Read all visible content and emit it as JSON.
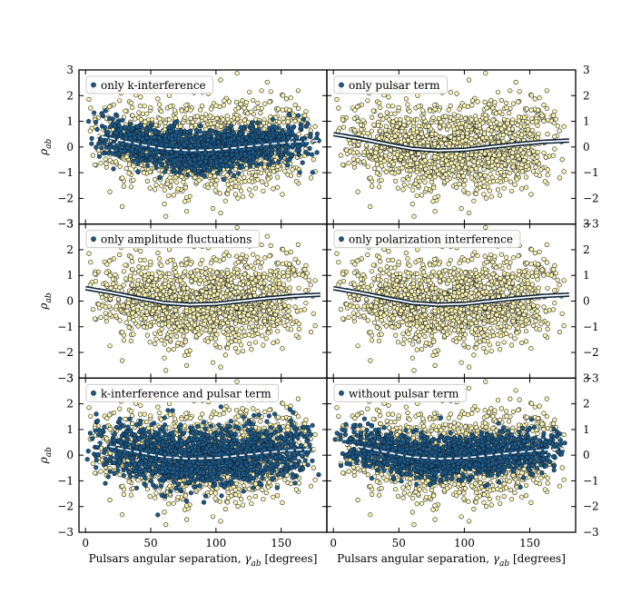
{
  "chart_data": {
    "type": "scatter",
    "layout": "3x2 grid",
    "xlabel": "Pulsars angular separation, γ_ab [degrees]",
    "xlabel_main": "Pulsars angular separation, ",
    "xlabel_symbol": "γ",
    "xlabel_sub": "ab",
    "xlabel_unit": " [degrees]",
    "ylabel": "ρ_ab",
    "ylabel_symbol": "ρ",
    "ylabel_sub": "ab",
    "xlim": [
      -5,
      185
    ],
    "ylim": [
      -3,
      3
    ],
    "xticks": [
      0,
      50,
      100,
      150
    ],
    "yticks": [
      -3,
      -2,
      -1,
      0,
      1,
      2,
      3
    ],
    "background_series": {
      "name": "",
      "color": "#fbf6b5",
      "edge": "#222222",
      "count_estimate": 1500,
      "spread_sd": 0.85
    },
    "highlight_color": "#1e5a85",
    "curve": {
      "description": "Hellings–Downs curve",
      "points": [
        [
          0,
          0.5
        ],
        [
          20,
          0.33
        ],
        [
          40,
          0.12
        ],
        [
          60,
          -0.07
        ],
        [
          80,
          -0.14
        ],
        [
          100,
          -0.11
        ],
        [
          120,
          0.0
        ],
        [
          140,
          0.11
        ],
        [
          160,
          0.2
        ],
        [
          180,
          0.25
        ]
      ]
    },
    "panels": [
      {
        "id": "k",
        "legend": "only k-interference",
        "highlight_count_estimate": 1500,
        "highlight_spread_sd": 0.38,
        "show_background": true,
        "y_ticks_side": "left",
        "x_ticks_labeled": false
      },
      {
        "id": "pulsar",
        "legend": "only pulsar term",
        "highlight_count_estimate": 0,
        "highlight_spread_sd": 0.0,
        "show_background": true,
        "y_ticks_side": "right",
        "x_ticks_labeled": false
      },
      {
        "id": "amp",
        "legend": "only amplitude fluctuations",
        "highlight_count_estimate": 0,
        "highlight_spread_sd": 0.0,
        "show_background": true,
        "y_ticks_side": "left",
        "x_ticks_labeled": false
      },
      {
        "id": "pol",
        "legend": "only polarization interference",
        "highlight_count_estimate": 0,
        "highlight_spread_sd": 0.0,
        "show_background": true,
        "y_ticks_side": "right",
        "x_ticks_labeled": false
      },
      {
        "id": "kp",
        "legend": "k-interference and pulsar term",
        "highlight_count_estimate": 1500,
        "highlight_spread_sd": 0.55,
        "show_background": true,
        "y_ticks_side": "left",
        "x_ticks_labeled": true
      },
      {
        "id": "nop",
        "legend": "without pulsar term",
        "highlight_count_estimate": 1500,
        "highlight_spread_sd": 0.4,
        "show_background": true,
        "y_ticks_side": "right",
        "x_ticks_labeled": true
      }
    ]
  }
}
